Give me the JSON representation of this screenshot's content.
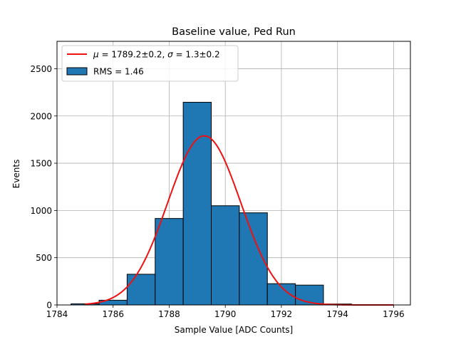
{
  "chart_data": {
    "type": "bar",
    "title": "Baseline value, Ped Run",
    "xlabel": "Sample Value [ADC Counts]",
    "ylabel": "Events",
    "xlim": [
      1784,
      1796.6
    ],
    "ylim": [
      0,
      2790
    ],
    "x_ticks": [
      1784,
      1786,
      1788,
      1790,
      1792,
      1794,
      1796
    ],
    "y_ticks": [
      0,
      500,
      1000,
      1500,
      2000,
      2500
    ],
    "grid": true,
    "legend_position": "top-left",
    "histogram": {
      "name": "RMS = 1.46",
      "color": "#1f77b4",
      "edge_color": "#000000",
      "bins": [
        {
          "x0": 1784.5,
          "x1": 1785.5,
          "count": 12
        },
        {
          "x0": 1785.5,
          "x1": 1786.5,
          "count": 50
        },
        {
          "x0": 1786.5,
          "x1": 1787.5,
          "count": 325
        },
        {
          "x0": 1787.5,
          "x1": 1788.5,
          "count": 915
        },
        {
          "x0": 1788.5,
          "x1": 1789.5,
          "count": 2145
        },
        {
          "x0": 1789.5,
          "x1": 1790.5,
          "count": 1050
        },
        {
          "x0": 1790.5,
          "x1": 1791.5,
          "count": 975
        },
        {
          "x0": 1791.5,
          "x1": 1792.5,
          "count": 225
        },
        {
          "x0": 1792.5,
          "x1": 1793.5,
          "count": 210
        },
        {
          "x0": 1793.5,
          "x1": 1794.5,
          "count": 10
        },
        {
          "x0": 1794.5,
          "x1": 1795.5,
          "count": 3
        }
      ]
    },
    "fit": {
      "name": "μ = 1789.2±0.2, σ = 1.3±0.2",
      "name_parts": {
        "mu_symbol": "μ",
        "mu_value": " = 1789.2±0.2, ",
        "sigma_symbol": "σ",
        "sigma_value": " = 1.3±0.2"
      },
      "color": "#ee1111",
      "amplitude": 1790,
      "mean": 1789.25,
      "sigma": 1.3,
      "x_range": [
        1785,
        1796
      ]
    }
  }
}
